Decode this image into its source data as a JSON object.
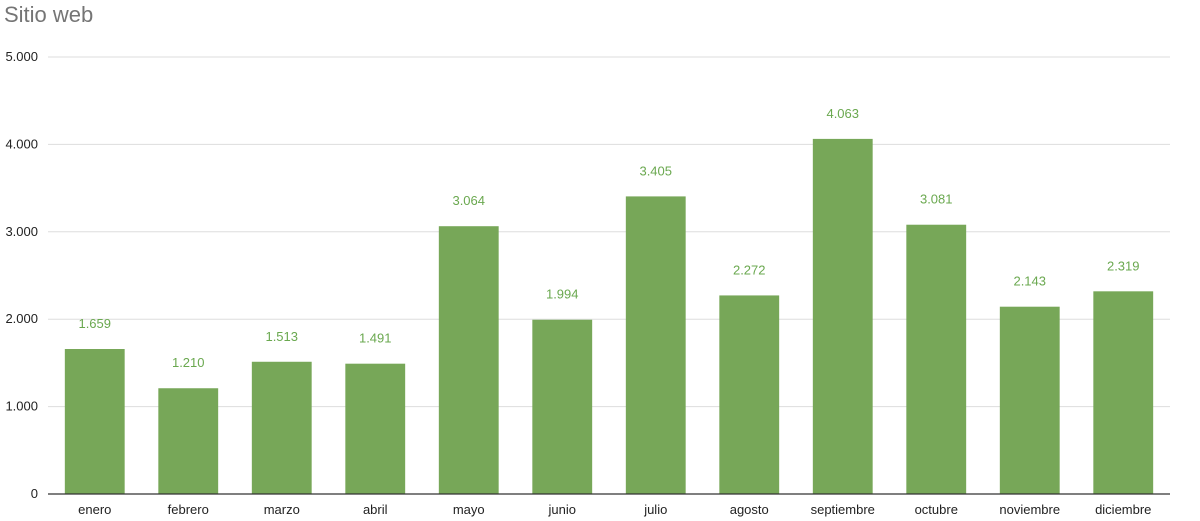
{
  "chart_data": {
    "type": "bar",
    "title": "Sitio web",
    "categories": [
      "enero",
      "febrero",
      "marzo",
      "abril",
      "mayo",
      "junio",
      "julio",
      "agosto",
      "septiembre",
      "octubre",
      "noviembre",
      "diciembre"
    ],
    "values": [
      1659,
      1210,
      1513,
      1491,
      3064,
      1994,
      3405,
      2272,
      4063,
      3081,
      2143,
      2319
    ],
    "value_labels": [
      "1.659",
      "1.210",
      "1.513",
      "1.491",
      "3.064",
      "1.994",
      "3.405",
      "2.272",
      "4.063",
      "3.081",
      "2.143",
      "2.319"
    ],
    "y_ticks": [
      0,
      1000,
      2000,
      3000,
      4000,
      5000
    ],
    "y_tick_labels": [
      "0",
      "1.000",
      "2.000",
      "3.000",
      "4.000",
      "5.000"
    ],
    "ylim": [
      0,
      5000
    ],
    "grid": true,
    "legend": "none",
    "bar_color": "#77a758",
    "label_color": "#6aa84f",
    "grid_color": "#dddddd",
    "axis_color": "#333333"
  }
}
